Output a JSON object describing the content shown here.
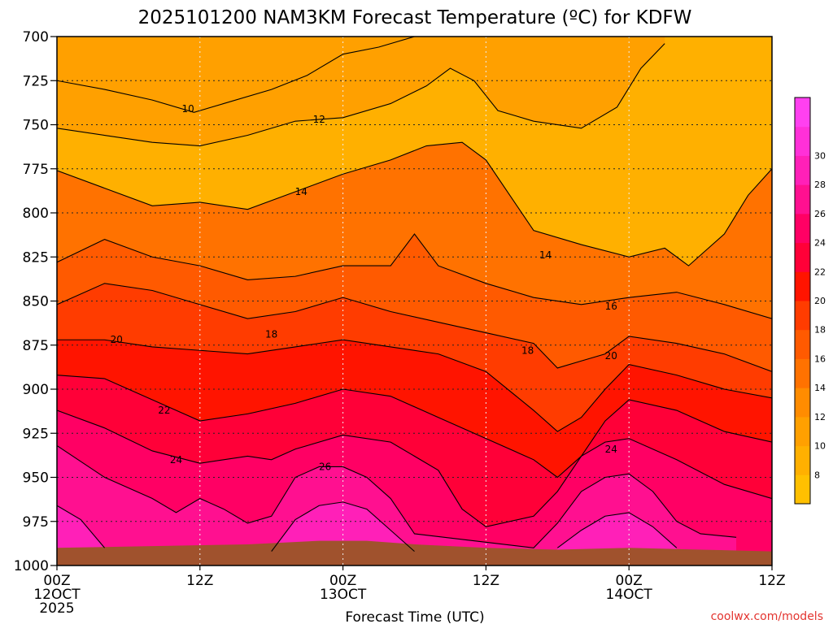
{
  "chart_data": {
    "type": "heatmap",
    "title": "2025101200 NAM3KM Forecast Temperature (ºC) for KDFW",
    "xlabel": "Forecast Time (UTC)",
    "ylabel": "",
    "credit": "coolwx.com/models",
    "x_ticks": [
      {
        "hour": 0,
        "lines": [
          "00Z",
          "12OCT",
          "2025"
        ]
      },
      {
        "hour": 12,
        "lines": [
          "12Z"
        ]
      },
      {
        "hour": 24,
        "lines": [
          "00Z",
          "13OCT"
        ]
      },
      {
        "hour": 36,
        "lines": [
          "12Z"
        ]
      },
      {
        "hour": 48,
        "lines": [
          "00Z",
          "14OCT"
        ]
      },
      {
        "hour": 60,
        "lines": [
          "12Z"
        ]
      }
    ],
    "xlim": [
      0,
      60
    ],
    "y_ticks": [
      700,
      725,
      750,
      775,
      800,
      825,
      850,
      875,
      900,
      925,
      950,
      975,
      1000
    ],
    "ylim": [
      700,
      1000
    ],
    "y_unit": "hPa",
    "colorbar": {
      "labels": [
        8,
        10,
        12,
        14,
        16,
        18,
        20,
        22,
        24,
        26,
        28,
        30
      ],
      "colors": [
        "#ffc000",
        "#ffb000",
        "#ffa000",
        "#ff8c00",
        "#ff7200",
        "#ff5a00",
        "#ff3c00",
        "#ff1400",
        "#ff0038",
        "#ff0064",
        "#ff1090",
        "#ff20b8",
        "#ff30d8",
        "#ff40f0"
      ]
    },
    "ground_color": "#a0522d",
    "grid": true,
    "contours": [
      {
        "level": 10,
        "points": [
          [
            0,
            725
          ],
          [
            4,
            730
          ],
          [
            8,
            736
          ],
          [
            11.5,
            743
          ],
          [
            14,
            738
          ],
          [
            18,
            730
          ],
          [
            21,
            722
          ],
          [
            24,
            710
          ],
          [
            27,
            706
          ],
          [
            30,
            700
          ]
        ]
      },
      {
        "level": 12,
        "points": [
          [
            0,
            752
          ],
          [
            4,
            756
          ],
          [
            8,
            760
          ],
          [
            12,
            762
          ],
          [
            16,
            756
          ],
          [
            20,
            748
          ],
          [
            24,
            746
          ],
          [
            28,
            738
          ],
          [
            31,
            728
          ],
          [
            33,
            718
          ],
          [
            35,
            725
          ],
          [
            37,
            742
          ],
          [
            40,
            748
          ],
          [
            44,
            752
          ],
          [
            47,
            740
          ],
          [
            49,
            718
          ],
          [
            51,
            704
          ]
        ]
      },
      {
        "level": 14,
        "points": [
          [
            0,
            776
          ],
          [
            4,
            786
          ],
          [
            8,
            796
          ],
          [
            12,
            794
          ],
          [
            16,
            798
          ],
          [
            20,
            788
          ],
          [
            24,
            778
          ],
          [
            28,
            770
          ],
          [
            31,
            762
          ],
          [
            34,
            760
          ],
          [
            36,
            770
          ],
          [
            38,
            790
          ],
          [
            40,
            810
          ],
          [
            44,
            818
          ],
          [
            48,
            825
          ],
          [
            51,
            820
          ],
          [
            53,
            830
          ],
          [
            56,
            812
          ],
          [
            58,
            790
          ],
          [
            60,
            775
          ]
        ]
      },
      {
        "level": 16,
        "points": [
          [
            0,
            828
          ],
          [
            4,
            815
          ],
          [
            8,
            825
          ],
          [
            12,
            830
          ],
          [
            16,
            838
          ],
          [
            20,
            836
          ],
          [
            24,
            830
          ],
          [
            28,
            830
          ],
          [
            30,
            812
          ],
          [
            32,
            830
          ],
          [
            36,
            840
          ],
          [
            40,
            848
          ],
          [
            44,
            852
          ],
          [
            48,
            848
          ],
          [
            52,
            845
          ],
          [
            56,
            852
          ],
          [
            60,
            860
          ]
        ]
      },
      {
        "level": 18,
        "points": [
          [
            0,
            852
          ],
          [
            4,
            840
          ],
          [
            8,
            844
          ],
          [
            12,
            852
          ],
          [
            16,
            860
          ],
          [
            20,
            856
          ],
          [
            24,
            848
          ],
          [
            28,
            856
          ],
          [
            32,
            862
          ],
          [
            36,
            868
          ],
          [
            40,
            874
          ],
          [
            42,
            888
          ],
          [
            44,
            884
          ],
          [
            46,
            880
          ],
          [
            48,
            870
          ],
          [
            52,
            874
          ],
          [
            56,
            880
          ],
          [
            60,
            890
          ]
        ]
      },
      {
        "level": 20,
        "points": [
          [
            0,
            872
          ],
          [
            4,
            872
          ],
          [
            8,
            876
          ],
          [
            12,
            878
          ],
          [
            16,
            880
          ],
          [
            20,
            876
          ],
          [
            24,
            872
          ],
          [
            28,
            876
          ],
          [
            32,
            880
          ],
          [
            36,
            890
          ],
          [
            40,
            912
          ],
          [
            42,
            924
          ],
          [
            44,
            916
          ],
          [
            46,
            900
          ],
          [
            48,
            886
          ],
          [
            52,
            892
          ],
          [
            56,
            900
          ],
          [
            60,
            905
          ]
        ]
      },
      {
        "level": 22,
        "points": [
          [
            0,
            892
          ],
          [
            4,
            894
          ],
          [
            8,
            906
          ],
          [
            12,
            918
          ],
          [
            16,
            914
          ],
          [
            20,
            908
          ],
          [
            24,
            900
          ],
          [
            28,
            904
          ],
          [
            32,
            916
          ],
          [
            36,
            928
          ],
          [
            40,
            940
          ],
          [
            42,
            950
          ],
          [
            44,
            938
          ],
          [
            46,
            918
          ],
          [
            48,
            906
          ],
          [
            52,
            912
          ],
          [
            56,
            924
          ],
          [
            60,
            930
          ]
        ]
      },
      {
        "level": 24,
        "points": [
          [
            0,
            912
          ],
          [
            4,
            922
          ],
          [
            8,
            935
          ],
          [
            12,
            942
          ],
          [
            16,
            938
          ],
          [
            18,
            940
          ],
          [
            20,
            934
          ],
          [
            24,
            926
          ],
          [
            28,
            930
          ],
          [
            32,
            946
          ],
          [
            34,
            968
          ],
          [
            36,
            978
          ],
          [
            40,
            972
          ],
          [
            42,
            958
          ],
          [
            44,
            938
          ],
          [
            46,
            930
          ],
          [
            48,
            928
          ],
          [
            52,
            940
          ],
          [
            56,
            954
          ],
          [
            60,
            962
          ]
        ]
      },
      {
        "level": 26,
        "points": [
          [
            0,
            932
          ],
          [
            4,
            950
          ],
          [
            8,
            962
          ],
          [
            10,
            970
          ],
          [
            12,
            962
          ],
          [
            14,
            968
          ],
          [
            16,
            976
          ],
          [
            18,
            972
          ],
          [
            20,
            950
          ],
          [
            22,
            944
          ],
          [
            24,
            944
          ],
          [
            26,
            950
          ],
          [
            28,
            962
          ],
          [
            30,
            982
          ],
          [
            40,
            990
          ],
          [
            42,
            976
          ],
          [
            44,
            958
          ],
          [
            46,
            950
          ],
          [
            48,
            948
          ],
          [
            50,
            958
          ],
          [
            52,
            975
          ],
          [
            54,
            982
          ],
          [
            57,
            984
          ]
        ]
      },
      {
        "level": 28,
        "points": [
          [
            0,
            966
          ],
          [
            2,
            974
          ],
          [
            4,
            990
          ]
        ]
      },
      {
        "level": 28,
        "points": [
          [
            18,
            992
          ],
          [
            20,
            974
          ],
          [
            22,
            966
          ],
          [
            24,
            964
          ],
          [
            26,
            968
          ],
          [
            28,
            980
          ],
          [
            30,
            992
          ]
        ]
      },
      {
        "level": 28,
        "points": [
          [
            42,
            990
          ],
          [
            44,
            980
          ],
          [
            46,
            972
          ],
          [
            48,
            970
          ],
          [
            50,
            978
          ],
          [
            52,
            990
          ]
        ]
      }
    ],
    "contour_labels": [
      {
        "text": "10",
        "hour": 11,
        "p": 741
      },
      {
        "text": "12",
        "hour": 22,
        "p": 747
      },
      {
        "text": "14",
        "hour": 20.5,
        "p": 788
      },
      {
        "text": "14",
        "hour": 41,
        "p": 824
      },
      {
        "text": "16",
        "hour": 46.5,
        "p": 853
      },
      {
        "text": "18",
        "hour": 18,
        "p": 869
      },
      {
        "text": "18",
        "hour": 39.5,
        "p": 878
      },
      {
        "text": "20",
        "hour": 5,
        "p": 872
      },
      {
        "text": "20",
        "hour": 46.5,
        "p": 881
      },
      {
        "text": "22",
        "hour": 9,
        "p": 912
      },
      {
        "text": "24",
        "hour": 10,
        "p": 940
      },
      {
        "text": "24",
        "hour": 46.5,
        "p": 934
      },
      {
        "text": "26",
        "hour": 22.5,
        "p": 944
      }
    ]
  }
}
